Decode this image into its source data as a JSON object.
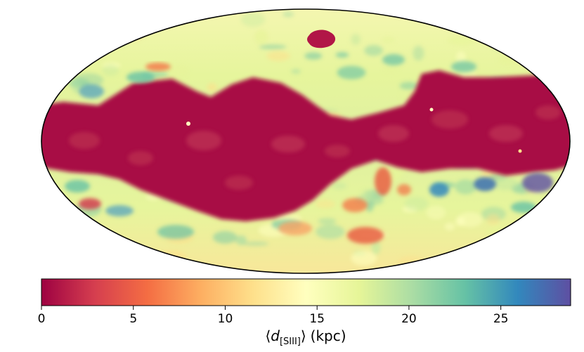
{
  "chart_data": {
    "type": "heatmap",
    "projection": "Mollweide all-sky",
    "title": "",
    "colormap": "Spectral",
    "colormap_stops": [
      "#9e0142",
      "#d53e4f",
      "#f46d43",
      "#fdae61",
      "#fee08b",
      "#ffffbf",
      "#e6f598",
      "#abdda4",
      "#66c2a5",
      "#3288bd",
      "#5e4fa2"
    ],
    "color_range": [
      0,
      28.8
    ],
    "colorbar": {
      "ticks": [
        0,
        5,
        10,
        15,
        20,
        25
      ],
      "tick_labels": [
        "0",
        "5",
        "10",
        "15",
        "20",
        "25"
      ],
      "label": {
        "open": "⟨",
        "symbol": "d",
        "subscript": "[SIII]",
        "close": "⟩",
        "units": "(kpc)"
      },
      "orientation": "horizontal",
      "placement": "bottom"
    },
    "regions": [
      {
        "name": "galactic-plane-band",
        "value": 0.5
      },
      {
        "name": "northern-high-latitude",
        "value": 17
      },
      {
        "name": "southern-high-latitude",
        "value": 17
      },
      {
        "name": "north-polar-spot",
        "value": 1
      },
      {
        "name": "south-east-high-distance-patch",
        "value": 24
      }
    ]
  }
}
